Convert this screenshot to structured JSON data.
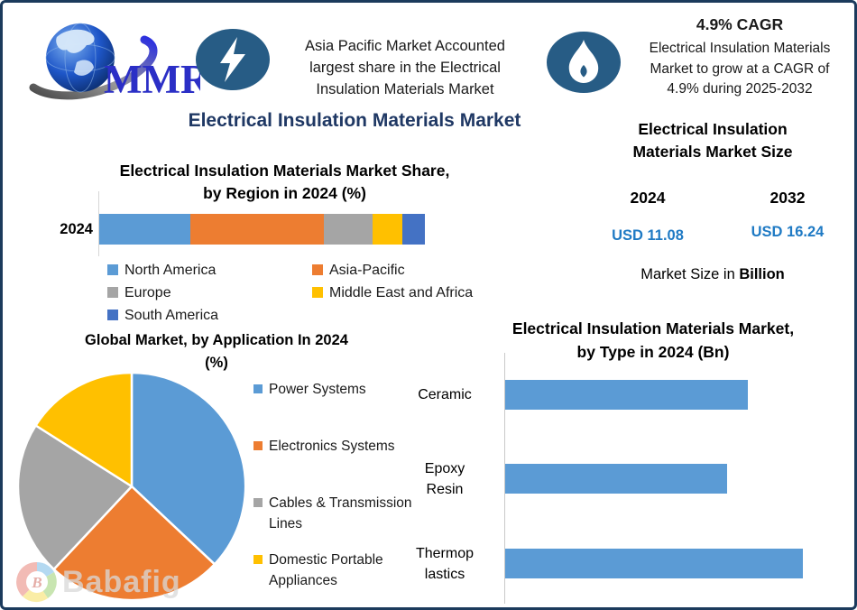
{
  "theme": {
    "border_navy": "#1B3A5C",
    "title_navy": "#1F3864",
    "icon_bg": "#275C85",
    "value_blue": "#1F7AC4"
  },
  "header": {
    "logo_text": "MMR",
    "asia_note_lines": [
      "Asia Pacific Market Accounted",
      "largest share in the Electrical",
      "Insulation Materials Market"
    ],
    "cagr_title": "4.9% CAGR",
    "cagr_note_lines": [
      "Electrical Insulation Materials",
      "Market to grow at a CAGR of",
      "4.9% during 2025-2032"
    ]
  },
  "main_title": "Electrical Insulation Materials Market",
  "market_size": {
    "title_lines": [
      "Electrical Insulation",
      "Materials Market Size"
    ],
    "columns": [
      {
        "year": "2024",
        "value": "USD 11.08"
      },
      {
        "year": "2032",
        "value": "USD 16.24"
      }
    ],
    "footnote_prefix": "Market Size in ",
    "footnote_bold": "Billion"
  },
  "watermark": {
    "text": "Babafig"
  },
  "chart_data": [
    {
      "id": "region-share",
      "type": "bar",
      "subtype": "stacked-horizontal",
      "title": "Electrical Insulation Materials Market Share, by Region in 2024 (%)",
      "title_lines": [
        "Electrical Insulation Materials Market Share,",
        "by Region in 2024 (%)"
      ],
      "categories": [
        "2024"
      ],
      "series": [
        {
          "name": "North America",
          "values": [
            28
          ],
          "color": "#5B9BD5"
        },
        {
          "name": "Asia-Pacific",
          "values": [
            41
          ],
          "color": "#ED7D31"
        },
        {
          "name": "Europe",
          "values": [
            15
          ],
          "color": "#A5A5A5"
        },
        {
          "name": "Middle East and Africa",
          "values": [
            9
          ],
          "color": "#FFC000"
        },
        {
          "name": "South America",
          "values": [
            7
          ],
          "color": "#4472C4"
        }
      ],
      "units": "%",
      "xlim": [
        0,
        100
      ],
      "legend_position": "bottom",
      "grid": false
    },
    {
      "id": "application-pie",
      "type": "pie",
      "title": "Global Market, by Application In 2024 (%)",
      "title_lines": [
        "Global Market, by Application In 2024",
        "(%)"
      ],
      "labels": [
        "Power Systems",
        "Electronics Systems",
        "Cables & Transmission Lines",
        "Domestic Portable Appliances"
      ],
      "label_lines": [
        [
          "Power Systems",
          ""
        ],
        [
          "Electronics Systems",
          ""
        ],
        [
          "Cables & Transmission",
          "Lines"
        ],
        [
          "Domestic Portable",
          "Appliances"
        ]
      ],
      "values": [
        37,
        25,
        22,
        16
      ],
      "colors": [
        "#5B9BD5",
        "#ED7D31",
        "#A5A5A5",
        "#FFC000"
      ],
      "units": "%",
      "start_angle_deg": 0,
      "direction": "clockwise",
      "legend_position": "right"
    },
    {
      "id": "type-bars",
      "type": "bar",
      "subtype": "horizontal",
      "title": "Electrical Insulation Materials Market, by Type in 2024 (Bn)",
      "title_lines": [
        "Electrical Insulation Materials Market,",
        "by Type in 2024 (Bn)"
      ],
      "categories": [
        "Ceramic",
        "Epoxy Resin",
        "Thermoplastics"
      ],
      "category_lines": [
        [
          "Ceramic",
          ""
        ],
        [
          "Epoxy",
          "Resin"
        ],
        [
          "Thermop",
          "lastics"
        ]
      ],
      "values": [
        3.5,
        3.2,
        4.3
      ],
      "units": "Bn",
      "xlim": [
        0,
        5
      ],
      "bar_color": "#5B9BD5",
      "grid": false,
      "value_axis_visible": false
    }
  ]
}
